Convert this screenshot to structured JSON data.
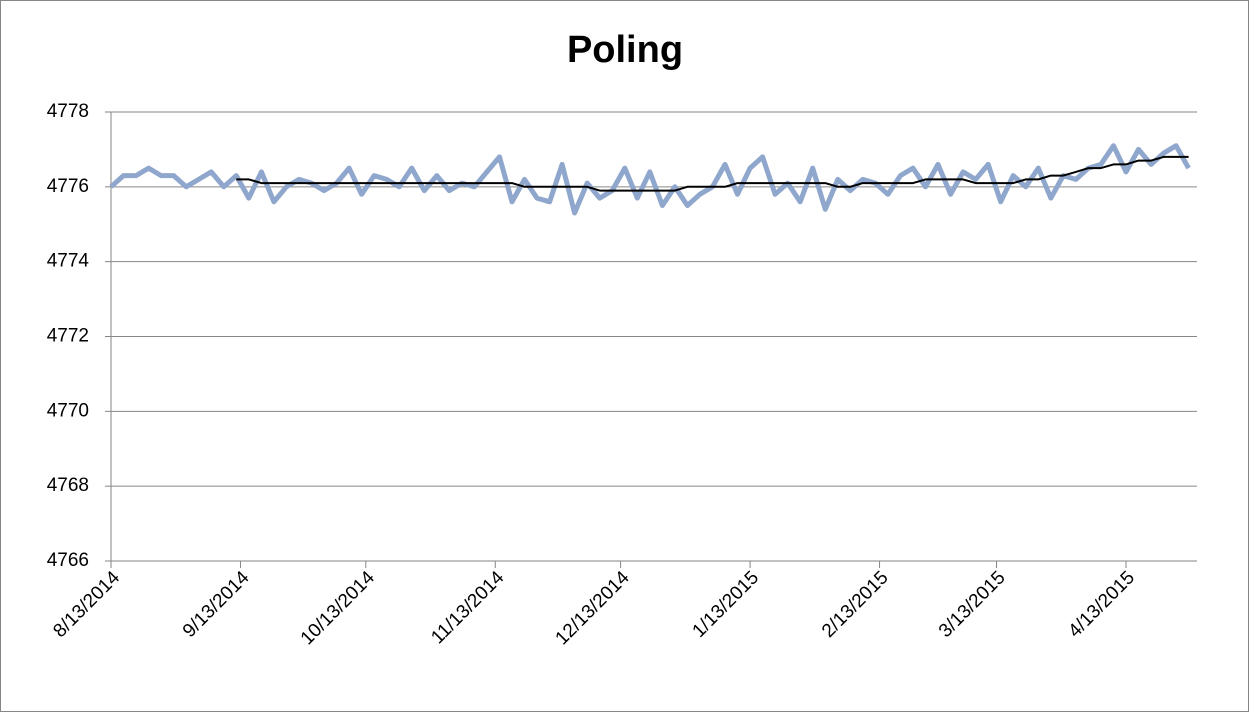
{
  "chart_data": {
    "type": "line",
    "title": "Poling",
    "x": [
      "2014-08-13",
      "2014-08-16",
      "2014-08-19",
      "2014-08-22",
      "2014-08-25",
      "2014-08-28",
      "2014-08-31",
      "2014-09-03",
      "2014-09-06",
      "2014-09-09",
      "2014-09-12",
      "2014-09-15",
      "2014-09-18",
      "2014-09-21",
      "2014-09-24",
      "2014-09-27",
      "2014-09-30",
      "2014-10-03",
      "2014-10-06",
      "2014-10-09",
      "2014-10-12",
      "2014-10-15",
      "2014-10-18",
      "2014-10-21",
      "2014-10-24",
      "2014-10-27",
      "2014-10-30",
      "2014-11-02",
      "2014-11-05",
      "2014-11-08",
      "2014-11-11",
      "2014-11-14",
      "2014-11-17",
      "2014-11-20",
      "2014-11-23",
      "2014-11-26",
      "2014-11-29",
      "2014-12-02",
      "2014-12-05",
      "2014-12-08",
      "2014-12-11",
      "2014-12-14",
      "2014-12-17",
      "2014-12-20",
      "2014-12-23",
      "2014-12-26",
      "2014-12-29",
      "2015-01-01",
      "2015-01-04",
      "2015-01-07",
      "2015-01-10",
      "2015-01-13",
      "2015-01-16",
      "2015-01-19",
      "2015-01-22",
      "2015-01-25",
      "2015-01-28",
      "2015-01-31",
      "2015-02-03",
      "2015-02-06",
      "2015-02-09",
      "2015-02-12",
      "2015-02-15",
      "2015-02-18",
      "2015-02-21",
      "2015-02-24",
      "2015-02-27",
      "2015-03-02",
      "2015-03-05",
      "2015-03-08",
      "2015-03-11",
      "2015-03-14",
      "2015-03-17",
      "2015-03-20",
      "2015-03-23",
      "2015-03-26",
      "2015-03-29",
      "2015-04-01",
      "2015-04-04",
      "2015-04-07",
      "2015-04-10",
      "2015-04-13",
      "2015-04-16",
      "2015-04-19",
      "2015-04-22",
      "2015-04-25",
      "2015-04-28"
    ],
    "series": [
      {
        "color": "#8fa6cd",
        "values": [
          4776.0,
          4776.3,
          4776.3,
          4776.5,
          4776.3,
          4776.3,
          4776.0,
          4776.2,
          4776.4,
          4776.0,
          4776.3,
          4775.7,
          4776.4,
          4775.6,
          4776.0,
          4776.2,
          4776.1,
          4775.9,
          4776.1,
          4776.5,
          4775.8,
          4776.3,
          4776.2,
          4776.0,
          4776.5,
          4775.9,
          4776.3,
          4775.9,
          4776.1,
          4776.0,
          4776.4,
          4776.8,
          4775.6,
          4776.2,
          4775.7,
          4775.6,
          4776.6,
          4775.3,
          4776.1,
          4775.7,
          4775.9,
          4776.5,
          4775.7,
          4776.4,
          4775.5,
          4776.0,
          4775.5,
          4775.8,
          4776.0,
          4776.6,
          4775.8,
          4776.5,
          4776.8,
          4775.8,
          4776.1,
          4775.6,
          4776.5,
          4775.4,
          4776.2,
          4775.9,
          4776.2,
          4776.1,
          4775.8,
          4776.3,
          4776.5,
          4776.0,
          4776.6,
          4775.8,
          4776.4,
          4776.2,
          4776.6,
          4775.6,
          4776.3,
          4776.0,
          4776.5,
          4775.7,
          4776.3,
          4776.2,
          4776.5,
          4776.6,
          4777.1,
          4776.4,
          4777.0,
          4776.6,
          4776.9,
          4777.1,
          4776.5
        ]
      },
      {
        "color": "#000000",
        "values": [
          null,
          null,
          null,
          null,
          null,
          null,
          null,
          null,
          null,
          null,
          4776.2,
          4776.2,
          4776.1,
          4776.1,
          4776.1,
          4776.1,
          4776.1,
          4776.1,
          4776.1,
          4776.1,
          4776.1,
          4776.1,
          4776.1,
          4776.1,
          4776.1,
          4776.1,
          4776.1,
          4776.1,
          4776.1,
          4776.1,
          4776.1,
          4776.1,
          4776.1,
          4776.0,
          4776.0,
          4776.0,
          4776.0,
          4776.0,
          4776.0,
          4775.9,
          4775.9,
          4775.9,
          4775.9,
          4775.9,
          4775.9,
          4775.9,
          4776.0,
          4776.0,
          4776.0,
          4776.0,
          4776.1,
          4776.1,
          4776.1,
          4776.1,
          4776.1,
          4776.1,
          4776.1,
          4776.1,
          4776.0,
          4776.0,
          4776.1,
          4776.1,
          4776.1,
          4776.1,
          4776.1,
          4776.2,
          4776.2,
          4776.2,
          4776.2,
          4776.1,
          4776.1,
          4776.1,
          4776.1,
          4776.2,
          4776.2,
          4776.3,
          4776.3,
          4776.4,
          4776.5,
          4776.5,
          4776.6,
          4776.6,
          4776.7,
          4776.7,
          4776.8,
          4776.8,
          4776.8
        ]
      }
    ],
    "xlim": [
      "2014-08-13",
      "2015-04-30"
    ],
    "xticks": [
      {
        "value": "2014-08-13",
        "label": "8/13/2014"
      },
      {
        "value": "2014-09-13",
        "label": "9/13/2014"
      },
      {
        "value": "2014-10-13",
        "label": "10/13/2014"
      },
      {
        "value": "2014-11-13",
        "label": "11/13/2014"
      },
      {
        "value": "2014-12-13",
        "label": "12/13/2014"
      },
      {
        "value": "2015-01-13",
        "label": "1/13/2015"
      },
      {
        "value": "2015-02-13",
        "label": "2/13/2015"
      },
      {
        "value": "2015-03-13",
        "label": "3/13/2015"
      },
      {
        "value": "2015-04-13",
        "label": "4/13/2015"
      }
    ],
    "ylim": [
      4766,
      4778
    ],
    "yticks": [
      4766,
      4768,
      4770,
      4772,
      4774,
      4776,
      4778
    ],
    "grid": true
  }
}
